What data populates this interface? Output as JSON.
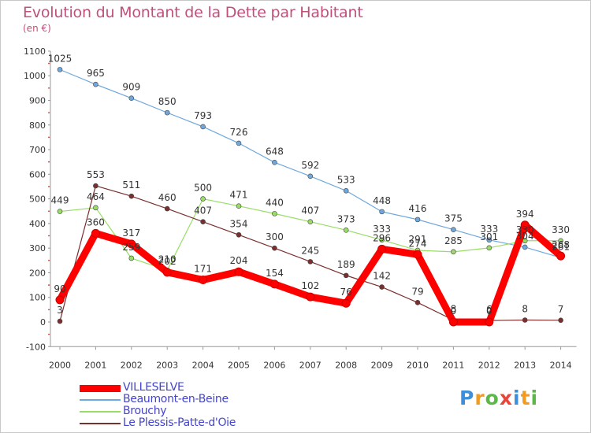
{
  "title": "Evolution du Montant de la Dette par Habitant",
  "unit_label": "(en €)",
  "logo": {
    "text": "Proxiti",
    "letters": [
      "P",
      "r",
      "o",
      "x",
      "i",
      "t",
      "i"
    ],
    "colors": [
      "#3d8fd9",
      "#f29b1f",
      "#5ab846",
      "#e8443a",
      "#3d8fd9",
      "#f29b1f",
      "#5ab846"
    ]
  },
  "chart_data": {
    "type": "line",
    "x": [
      2000,
      2001,
      2002,
      2003,
      2004,
      2005,
      2006,
      2007,
      2008,
      2009,
      2010,
      2011,
      2012,
      2013,
      2014
    ],
    "ylim": [
      -100,
      1100
    ],
    "yticks": [
      -100,
      0,
      100,
      200,
      300,
      400,
      500,
      600,
      700,
      800,
      900,
      1000,
      1100
    ],
    "grid": false,
    "legend_position": "bottom-left",
    "series": [
      {
        "name": "VILLESELVE",
        "color": "#ff0000",
        "values": [
          90,
          360,
          317,
          202,
          171,
          204,
          154,
          102,
          76,
          296,
          274,
          0,
          0,
          394,
          268
        ]
      },
      {
        "name": "Beaumont-en-Beine",
        "color": "#6fa8dc",
        "values": [
          1025,
          965,
          909,
          850,
          793,
          726,
          648,
          592,
          533,
          448,
          416,
          375,
          333,
          304,
          261
        ]
      },
      {
        "name": "Brouchy",
        "color": "#99dd66",
        "values": [
          449,
          464,
          259,
          210,
          500,
          471,
          440,
          407,
          373,
          333,
          291,
          285,
          301,
          330,
          330
        ]
      },
      {
        "name": "Le Plessis-Patte-d'Oie",
        "color": "#7a2e2e",
        "values": [
          3,
          553,
          511,
          460,
          407,
          354,
          300,
          245,
          189,
          142,
          79,
          8,
          6,
          8,
          7
        ]
      }
    ]
  }
}
